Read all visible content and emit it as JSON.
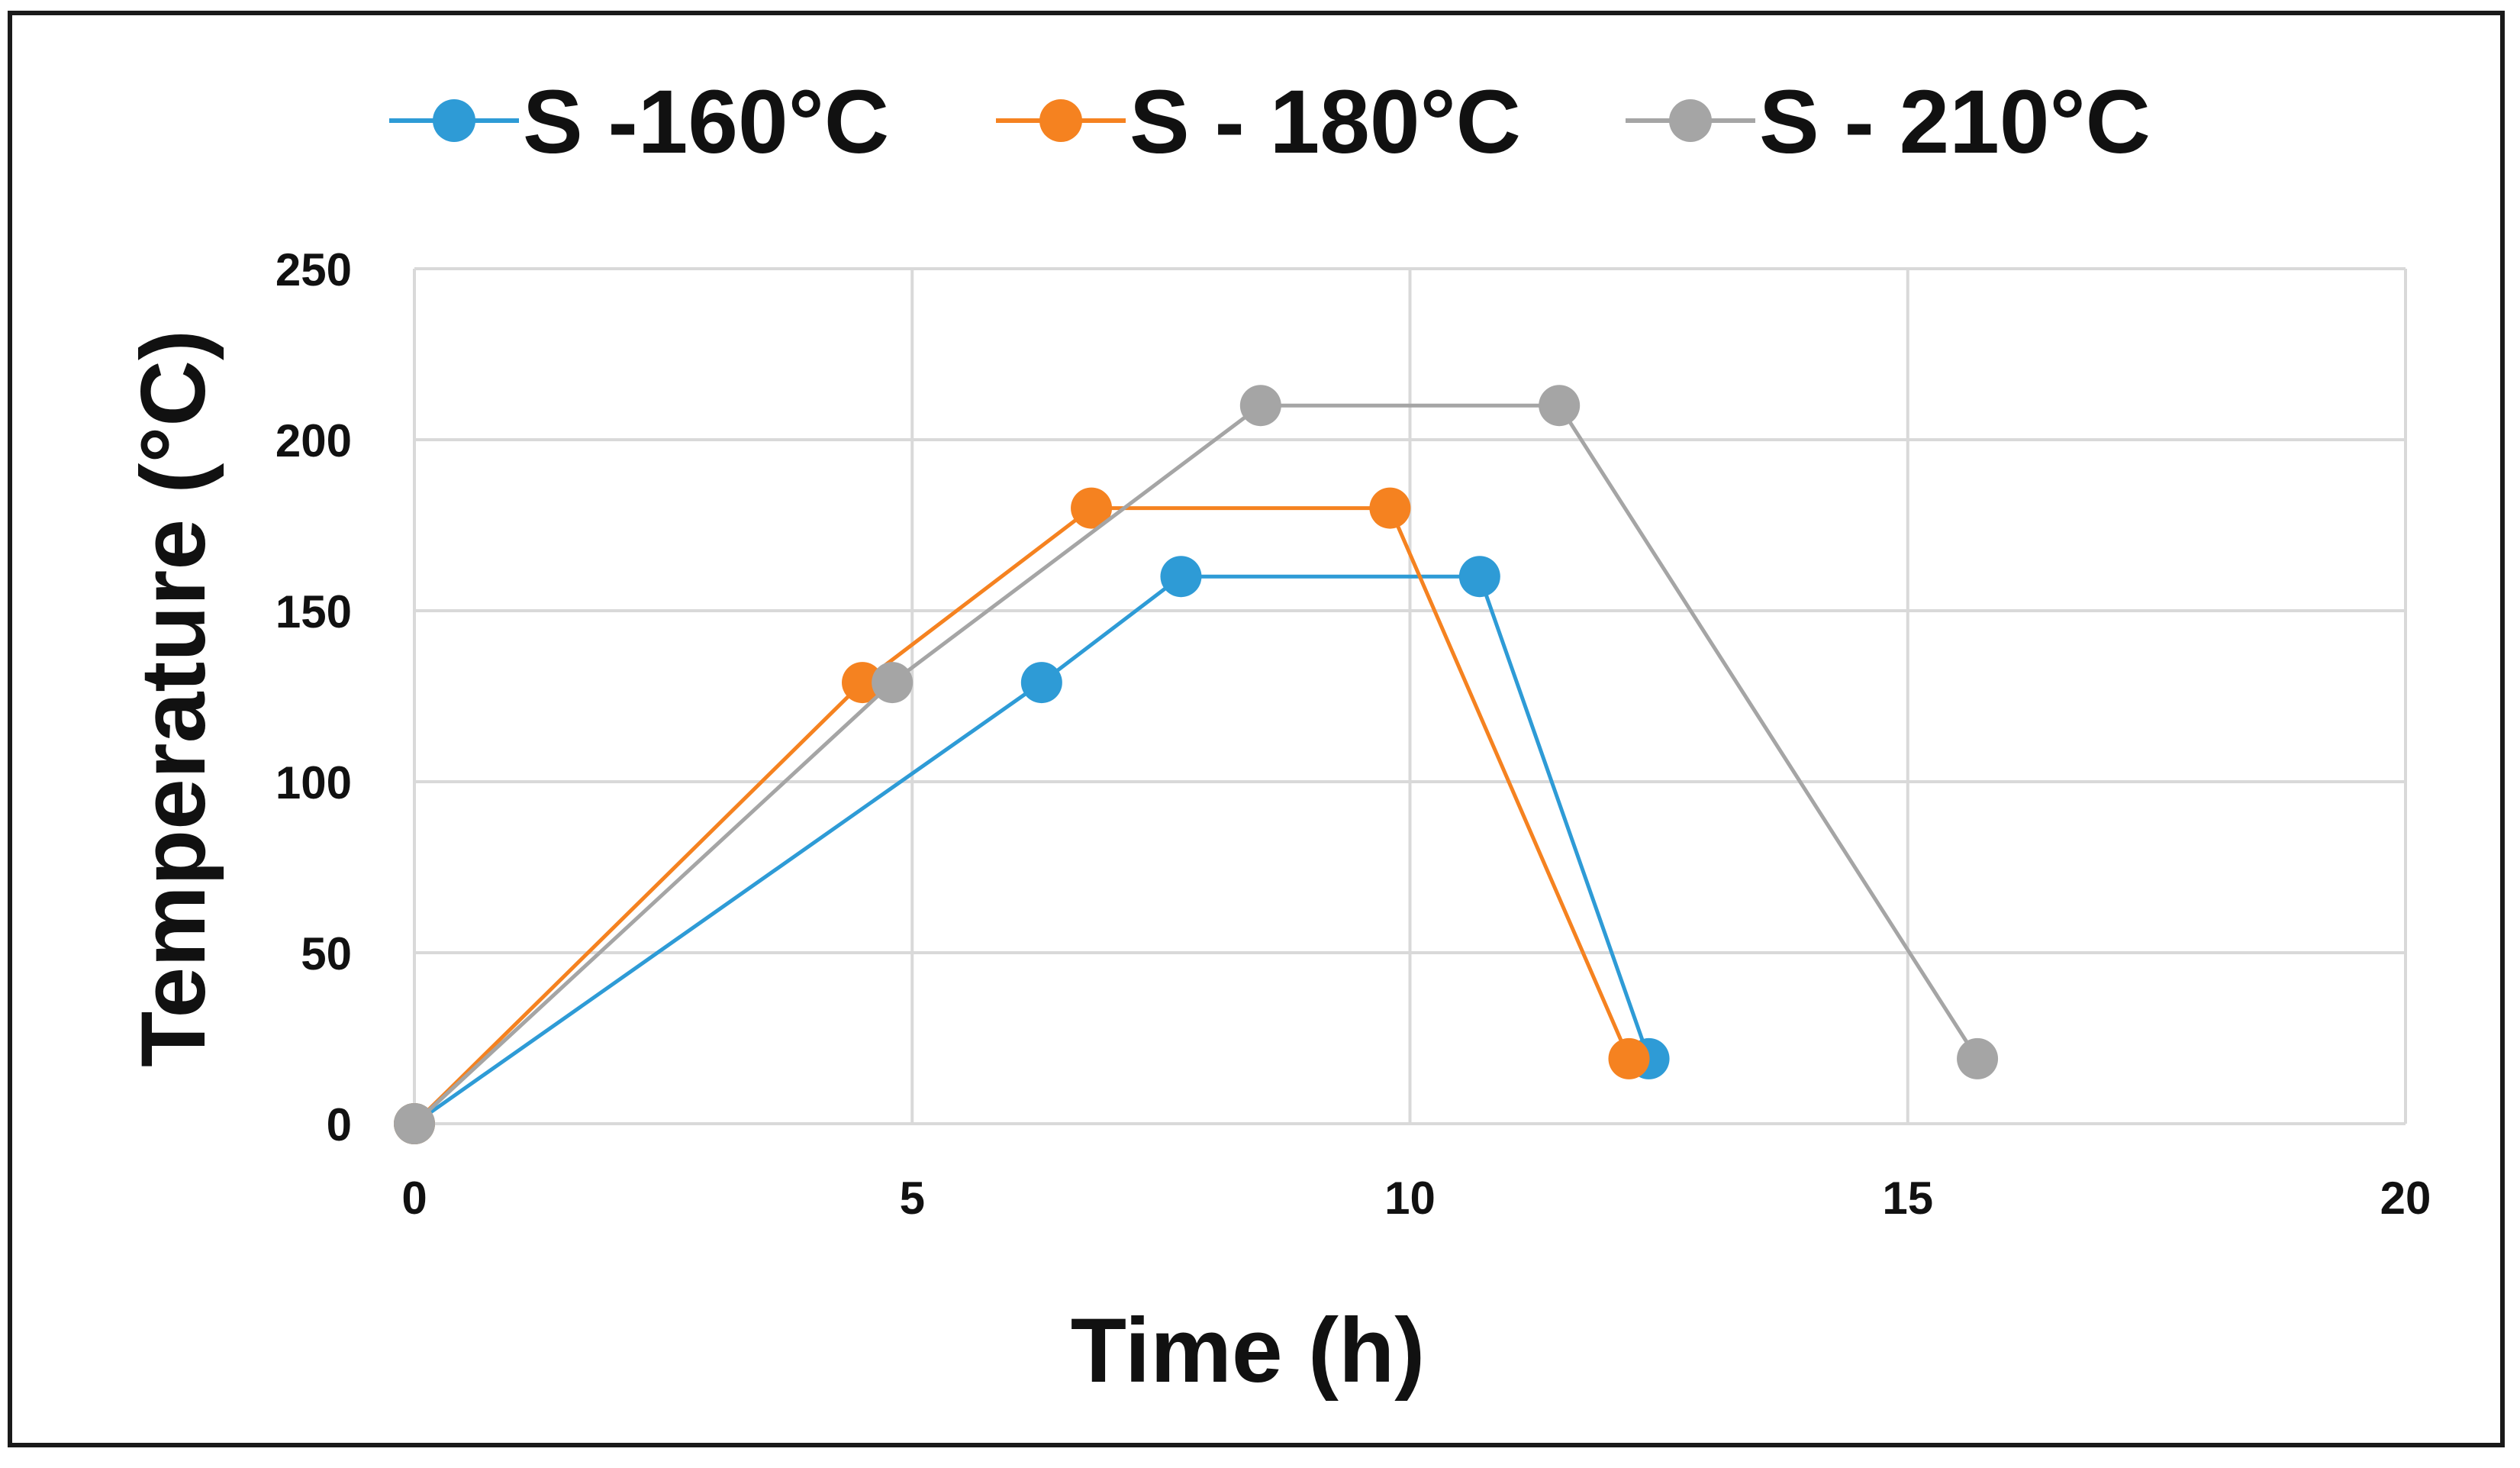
{
  "chart_data": {
    "type": "line",
    "title": "",
    "xlabel": "Time (h)",
    "ylabel": "Temperature (°C)",
    "xlim": [
      0,
      20
    ],
    "ylim": [
      0,
      250
    ],
    "xticks": [
      0,
      5,
      10,
      15,
      20
    ],
    "yticks": [
      0,
      50,
      100,
      150,
      200,
      250
    ],
    "grid": true,
    "legend_position": "top",
    "series": [
      {
        "name": "S -160°C",
        "color": "#2E9BD6",
        "points": [
          [
            0,
            0
          ],
          [
            6.3,
            129
          ],
          [
            7.7,
            160
          ],
          [
            10.7,
            160
          ],
          [
            12.4,
            19
          ]
        ]
      },
      {
        "name": "S - 180°C",
        "color": "#F58220",
        "points": [
          [
            0,
            0
          ],
          [
            4.5,
            129
          ],
          [
            6.8,
            180
          ],
          [
            9.8,
            180
          ],
          [
            12.2,
            19
          ]
        ]
      },
      {
        "name": "S - 210°C",
        "color": "#A5A5A5",
        "points": [
          [
            0,
            0
          ],
          [
            4.8,
            129
          ],
          [
            8.5,
            210
          ],
          [
            11.5,
            210
          ],
          [
            15.7,
            19
          ]
        ]
      }
    ]
  }
}
